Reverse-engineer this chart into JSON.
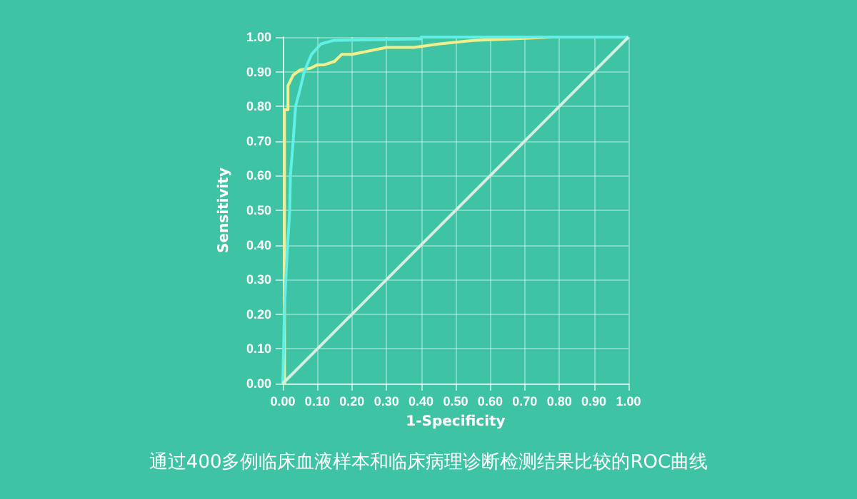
{
  "chart_data": {
    "type": "line",
    "title": "通过400多例临床血液样本和临床病理诊断检测结果比较的ROC曲线",
    "xlabel": "1-Specificity",
    "ylabel": "Sensitivity",
    "series": [
      {
        "color": "#f3ee8c",
        "x": [
          0,
          0.005,
          0.005,
          0.015,
          0.015,
          0.03,
          0.05,
          0.08,
          0.1,
          0.12,
          0.15,
          0.17,
          0.2,
          0.3,
          0.38,
          0.45,
          0.55,
          0.78,
          1.0
        ],
        "values": [
          0,
          0,
          0.79,
          0.79,
          0.86,
          0.89,
          0.905,
          0.91,
          0.92,
          0.92,
          0.93,
          0.95,
          0.95,
          0.97,
          0.97,
          0.98,
          0.99,
          1.0,
          1.0
        ]
      },
      {
        "color": "#62efe6",
        "x": [
          0,
          0.005,
          0.01,
          0.02,
          0.022,
          0.03,
          0.037,
          0.05,
          0.062,
          0.083,
          0.11,
          0.145,
          0.4,
          0.4,
          1.0
        ],
        "values": [
          0,
          0.22,
          0.33,
          0.5,
          0.6,
          0.7,
          0.8,
          0.85,
          0.9,
          0.95,
          0.98,
          0.99,
          0.995,
          1.0,
          1.0
        ]
      },
      {
        "color": "#d4eee0",
        "x": [
          0,
          1
        ],
        "values": [
          0,
          1
        ]
      }
    ],
    "xlim": [
      0,
      1
    ],
    "ylim": [
      0,
      1
    ],
    "xticks": [
      {
        "value": 0,
        "label": "0.00"
      },
      {
        "value": 0.1,
        "label": "0.10"
      },
      {
        "value": 0.2,
        "label": "0.20"
      },
      {
        "value": 0.3,
        "label": "0.30"
      },
      {
        "value": 0.4,
        "label": "0.40"
      },
      {
        "value": 0.5,
        "label": "0.50"
      },
      {
        "value": 0.6,
        "label": "0.60"
      },
      {
        "value": 0.7,
        "label": "0.70"
      },
      {
        "value": 0.8,
        "label": "0.80"
      },
      {
        "value": 0.9,
        "label": "0.90"
      },
      {
        "value": 1,
        "label": "1.00"
      }
    ],
    "yticks": [
      {
        "value": 0,
        "label": "0.00"
      },
      {
        "value": 0.1,
        "label": "0.10"
      },
      {
        "value": 0.2,
        "label": "0.20"
      },
      {
        "value": 0.3,
        "label": "0.30"
      },
      {
        "value": 0.4,
        "label": "0.40"
      },
      {
        "value": 0.5,
        "label": "0.50"
      },
      {
        "value": 0.6,
        "label": "0.60"
      },
      {
        "value": 0.7,
        "label": "0.70"
      },
      {
        "value": 0.8,
        "label": "0.80"
      },
      {
        "value": 0.9,
        "label": "0.90"
      },
      {
        "value": 1,
        "label": "1.00"
      }
    ],
    "grid": true,
    "marker": "none",
    "line_style": "solid"
  }
}
